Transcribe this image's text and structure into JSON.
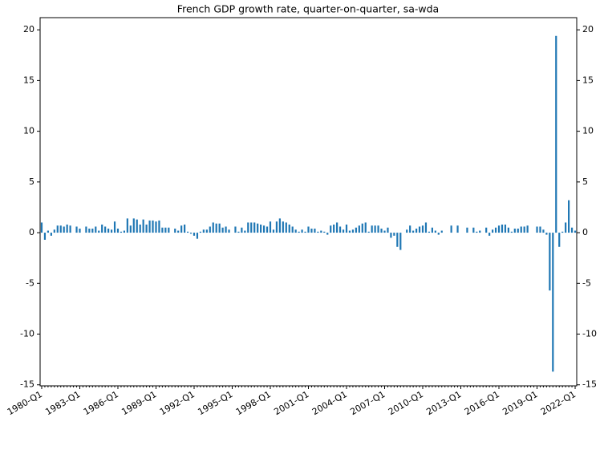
{
  "chart_data": {
    "type": "bar",
    "title": "French GDP growth rate, quarter-on-quarter, sa-wda",
    "color": "#1f77b4",
    "mirror_y_axis": true,
    "categories": [
      "1980-Q1",
      null,
      null,
      null,
      null,
      null,
      null,
      null,
      null,
      null,
      null,
      null,
      "1983-Q1",
      null,
      null,
      null,
      null,
      null,
      null,
      null,
      null,
      null,
      null,
      null,
      "1986-Q1",
      null,
      null,
      null,
      null,
      null,
      null,
      null,
      null,
      null,
      null,
      null,
      "1989-Q1",
      null,
      null,
      null,
      null,
      null,
      null,
      null,
      null,
      null,
      null,
      null,
      "1992-Q1",
      null,
      null,
      null,
      null,
      null,
      null,
      null,
      null,
      null,
      null,
      null,
      "1995-Q1",
      null,
      null,
      null,
      null,
      null,
      null,
      null,
      null,
      null,
      null,
      null,
      "1998-Q1",
      null,
      null,
      null,
      null,
      null,
      null,
      null,
      null,
      null,
      null,
      null,
      "2001-Q1",
      null,
      null,
      null,
      null,
      null,
      null,
      null,
      null,
      null,
      null,
      null,
      "2004-Q1",
      null,
      null,
      null,
      null,
      null,
      null,
      null,
      null,
      null,
      null,
      null,
      "2007-Q1",
      null,
      null,
      null,
      null,
      null,
      null,
      null,
      null,
      null,
      null,
      null,
      "2010-Q1",
      null,
      null,
      null,
      null,
      null,
      null,
      null,
      null,
      null,
      null,
      null,
      "2013-Q1",
      null,
      null,
      null,
      null,
      null,
      null,
      null,
      null,
      null,
      null,
      null,
      "2016-Q1",
      null,
      null,
      null,
      null,
      null,
      null,
      null,
      null,
      null,
      null,
      null,
      "2019-Q1",
      null,
      null,
      null,
      null,
      null,
      null,
      null,
      null,
      null,
      null,
      null,
      "2022-Q1"
    ],
    "values": [
      1.0,
      -0.7,
      0.2,
      -0.3,
      0.3,
      0.7,
      0.7,
      0.6,
      0.8,
      0.7,
      0.0,
      0.6,
      0.4,
      0.0,
      0.6,
      0.4,
      0.4,
      0.6,
      0.2,
      0.8,
      0.6,
      0.4,
      0.3,
      1.1,
      0.4,
      0.1,
      0.2,
      1.4,
      0.7,
      1.4,
      1.3,
      0.8,
      1.3,
      0.8,
      1.2,
      1.2,
      1.1,
      1.2,
      0.5,
      0.5,
      0.5,
      0.0,
      0.4,
      0.2,
      0.7,
      0.8,
      0.1,
      -0.1,
      -0.3,
      -0.6,
      0.1,
      0.3,
      0.3,
      0.6,
      1.0,
      0.9,
      0.9,
      0.5,
      0.6,
      0.3,
      0.0,
      0.6,
      0.1,
      0.5,
      0.2,
      1.0,
      1.0,
      1.0,
      0.9,
      0.8,
      0.7,
      0.6,
      1.1,
      0.3,
      1.1,
      1.4,
      1.1,
      1.0,
      0.8,
      0.6,
      0.3,
      0.1,
      0.3,
      0.1,
      0.6,
      0.4,
      0.4,
      0.1,
      0.2,
      0.1,
      -0.2,
      0.7,
      0.8,
      1.0,
      0.6,
      0.3,
      0.8,
      0.2,
      0.3,
      0.5,
      0.7,
      0.9,
      1.0,
      0.1,
      0.7,
      0.7,
      0.7,
      0.4,
      0.2,
      0.5,
      -0.5,
      -0.3,
      -1.4,
      -1.7,
      0.0,
      0.3,
      0.7,
      0.2,
      0.4,
      0.6,
      0.7,
      1.0,
      0.1,
      0.5,
      0.2,
      -0.2,
      0.2,
      0.0,
      0.0,
      0.7,
      0.0,
      0.7,
      0.0,
      0.0,
      0.5,
      0.0,
      0.5,
      0.1,
      0.2,
      0.0,
      0.5,
      -0.3,
      0.3,
      0.5,
      0.7,
      0.8,
      0.8,
      0.5,
      0.1,
      0.4,
      0.4,
      0.6,
      0.6,
      0.7,
      0.0,
      0.0,
      0.6,
      0.6,
      0.3,
      -0.2,
      -5.7,
      -13.7,
      19.4,
      -1.4,
      0.1,
      1.0,
      3.2,
      0.5,
      0.2
    ],
    "ylim": [
      -15.1,
      21.2
    ],
    "yticks": [
      -15,
      -10,
      -5,
      0,
      5,
      10,
      15,
      20
    ]
  }
}
